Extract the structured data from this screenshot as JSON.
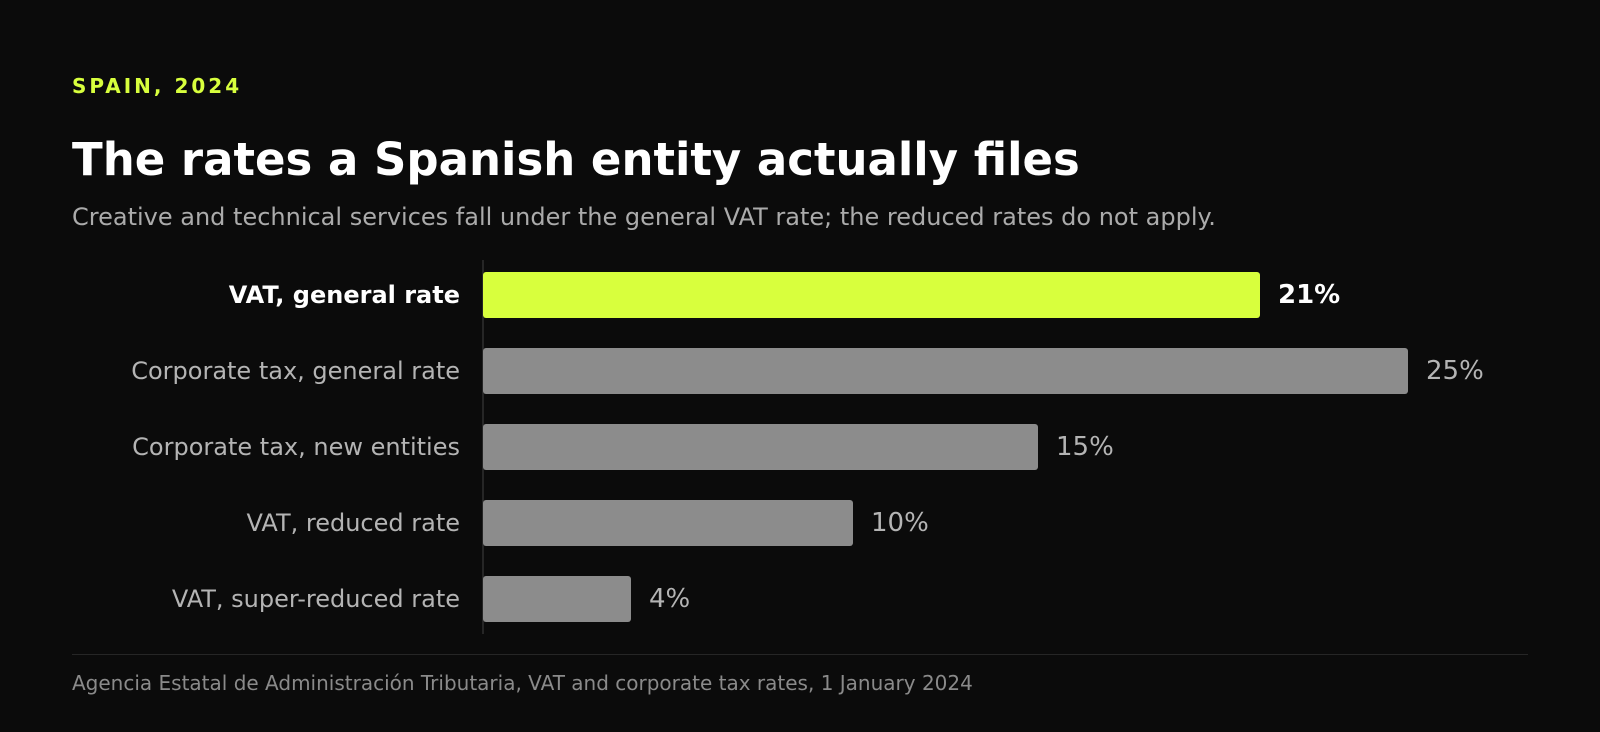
{
  "header": {
    "eyebrow": "SPAIN, 2024",
    "title": "The rates a Spanish entity actually files",
    "subtitle": "Creative and technical services fall under the general VAT rate; the reduced rates do not apply."
  },
  "footer": {
    "source": "Agencia Estatal de Administración Tributaria, VAT and corporate tax rates, 1 January 2024"
  },
  "colors": {
    "background": "#0b0b0b",
    "highlight": "#d8ff3d",
    "bar": "#8c8c8c",
    "label": "#b4b4b4",
    "highlight_label": "#ffffff"
  },
  "chart_data": {
    "type": "bar",
    "orientation": "horizontal",
    "categories": [
      "VAT, general rate",
      "Corporate tax, general rate",
      "Corporate tax, new entities",
      "VAT, reduced rate",
      "VAT, super-reduced rate"
    ],
    "values": [
      21,
      25,
      15,
      10,
      4
    ],
    "value_labels": [
      "21%",
      "25%",
      "15%",
      "10%",
      "4%"
    ],
    "highlighted": [
      true,
      false,
      false,
      false,
      false
    ],
    "xlim": [
      0,
      25
    ],
    "grid": false,
    "legend": "none"
  }
}
